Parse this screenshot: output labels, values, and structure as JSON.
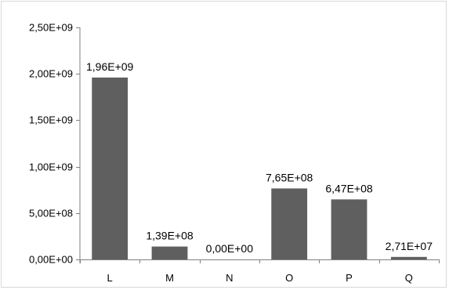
{
  "chart_data": {
    "type": "bar",
    "categories": [
      "L",
      "M",
      "N",
      "O",
      "P",
      "Q"
    ],
    "values": [
      1960000000,
      139000000,
      0,
      765000000,
      647000000,
      27100000
    ],
    "data_labels": [
      "1,96E+09",
      "1,39E+08",
      "0,00E+00",
      "7,65E+08",
      "6,47E+08",
      "2,71E+07"
    ],
    "y_ticks": [
      {
        "value": 0,
        "label": "0,00E+00"
      },
      {
        "value": 500000000,
        "label": "5,00E+08"
      },
      {
        "value": 1000000000,
        "label": "1,00E+09"
      },
      {
        "value": 1500000000,
        "label": "1,50E+09"
      },
      {
        "value": 2000000000,
        "label": "2,00E+09"
      },
      {
        "value": 2500000000,
        "label": "2,50E+09"
      }
    ],
    "ylim": [
      0,
      2500000000
    ],
    "grid": false,
    "legend": "none",
    "bar_color": "#5f5f5f",
    "axis_color": "#808080"
  }
}
